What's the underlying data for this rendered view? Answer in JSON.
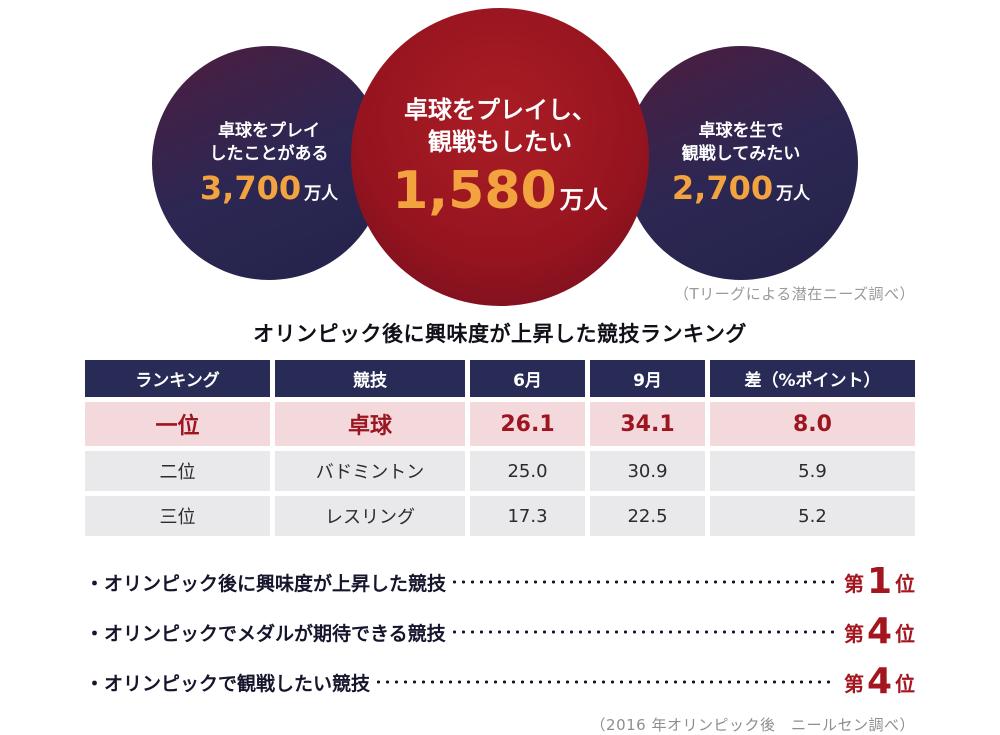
{
  "venn": {
    "left": {
      "label_line1": "卓球をプレイ",
      "label_line2": "したことがある",
      "value": "3,700",
      "unit": "万人"
    },
    "center": {
      "label_line1": "卓球をプレイし、",
      "label_line2": "観戦もしたい",
      "value": "1,580",
      "unit": "万人"
    },
    "right": {
      "label_line1": "卓球を生で",
      "label_line2": "観戦してみたい",
      "value": "2,700",
      "unit": "万人"
    },
    "caption": "（Tリーグによる潜在ニーズ調べ）"
  },
  "table": {
    "title": "オリンピック後に興味度が上昇した競技ランキング",
    "headers": [
      "ランキング",
      "競技",
      "6月",
      "9月",
      "差（%ポイント）"
    ],
    "rows": [
      [
        "一位",
        "卓球",
        "26.1",
        "34.1",
        "8.0"
      ],
      [
        "二位",
        "バドミントン",
        "25.0",
        "30.9",
        "5.9"
      ],
      [
        "三位",
        "レスリング",
        "17.3",
        "22.5",
        "5.2"
      ]
    ]
  },
  "rankings": [
    {
      "label": "・オリンピック後に興味度が上昇した競技",
      "prefix": "第",
      "number": "1",
      "suffix": "位"
    },
    {
      "label": "・オリンピックでメダルが期待できる競技",
      "prefix": "第",
      "number": "4",
      "suffix": "位"
    },
    {
      "label": "・オリンピックで観戦したい競技",
      "prefix": "第",
      "number": "4",
      "suffix": "位"
    }
  ],
  "footer_caption": "（2016 年オリンピック後　ニールセン調べ）",
  "colors": {
    "navy": "#272b55",
    "dark_red": "#96141f",
    "orange": "#f2a23e",
    "highlight_pink": "#f3d9dc",
    "rank_red": "#a3151f"
  },
  "chart_data": [
    {
      "type": "table",
      "title": "オリンピック後に興味度が上昇した競技ランキング",
      "columns": [
        "ランキング",
        "競技",
        "6月",
        "9月",
        "差（%ポイント）"
      ],
      "rows": [
        [
          "一位",
          "卓球",
          26.1,
          34.1,
          8.0
        ],
        [
          "二位",
          "バドミントン",
          25.0,
          30.9,
          5.9
        ],
        [
          "三位",
          "レスリング",
          17.3,
          22.5,
          5.2
        ]
      ],
      "source": "（2016 年オリンピック後　ニールセン調べ）"
    },
    {
      "type": "venn",
      "unit": "万人",
      "segments": [
        {
          "label": "卓球をプレイしたことがある",
          "value": 3700
        },
        {
          "label": "卓球をプレイし、観戦もしたい",
          "value": 1580
        },
        {
          "label": "卓球を生で観戦してみたい",
          "value": 2700
        }
      ],
      "source": "（Tリーグによる潜在ニーズ調べ）"
    }
  ]
}
